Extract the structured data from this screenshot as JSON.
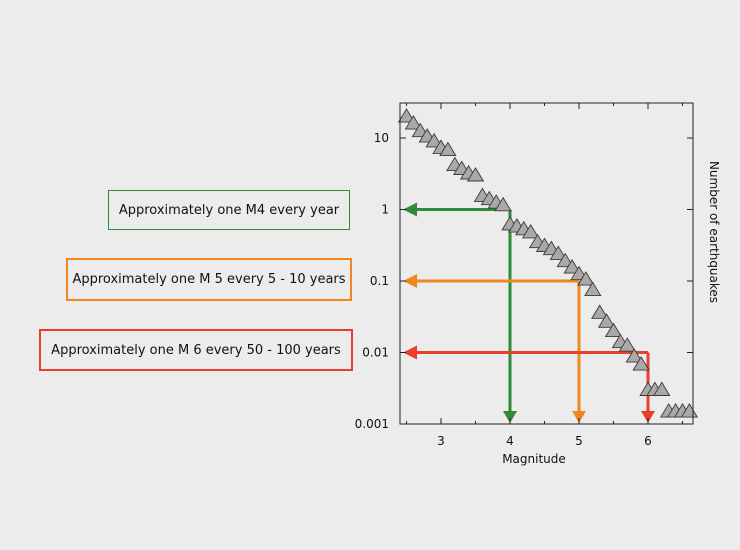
{
  "callouts": [
    {
      "id": "m4",
      "text": "Approximately one M4 every year",
      "color": "#2e8b3a"
    },
    {
      "id": "m5",
      "text": "Approximately one M 5 every 5 - 10 years",
      "color": "#f0861f"
    },
    {
      "id": "m6",
      "text": "Approximately one M 6 every 50 - 100 years",
      "color": "#e8402a"
    }
  ],
  "chart_data": {
    "type": "scatter",
    "xlabel": "Magnitude",
    "ylabel": "Number of earthquakes",
    "xlim": [
      2.45,
      6.75
    ],
    "ylim": [
      0.001,
      30
    ],
    "yscale": "log",
    "x_ticks": [
      3,
      4,
      5,
      6
    ],
    "x_tick_labels": [
      "3",
      "4",
      "5",
      "6"
    ],
    "y_ticks": [
      0.001,
      0.01,
      0.1,
      1,
      10
    ],
    "y_tick_labels": [
      "0.001",
      "0.01",
      "0.1",
      "1",
      "10"
    ],
    "marker": "triangle",
    "marker_color": "#a9a9a9",
    "series": [
      {
        "points": [
          [
            2.5,
            20
          ],
          [
            2.6,
            16
          ],
          [
            2.7,
            12.5
          ],
          [
            2.8,
            10.5
          ],
          [
            2.9,
            9
          ],
          [
            3.0,
            7.3
          ],
          [
            3.1,
            6.8
          ],
          [
            3.2,
            4.2
          ],
          [
            3.3,
            3.7
          ],
          [
            3.4,
            3.2
          ],
          [
            3.5,
            3.0
          ],
          [
            3.6,
            1.55
          ],
          [
            3.7,
            1.4
          ],
          [
            3.8,
            1.25
          ],
          [
            3.9,
            1.15
          ],
          [
            4.0,
            0.62
          ],
          [
            4.1,
            0.58
          ],
          [
            4.2,
            0.53
          ],
          [
            4.3,
            0.48
          ],
          [
            4.4,
            0.35
          ],
          [
            4.5,
            0.31
          ],
          [
            4.6,
            0.28
          ],
          [
            4.7,
            0.24
          ],
          [
            4.8,
            0.19
          ],
          [
            4.9,
            0.155
          ],
          [
            5.0,
            0.125
          ],
          [
            5.1,
            0.105
          ],
          [
            5.2,
            0.075
          ],
          [
            5.3,
            0.036
          ],
          [
            5.4,
            0.027
          ],
          [
            5.5,
            0.02
          ],
          [
            5.6,
            0.014
          ],
          [
            5.7,
            0.0125
          ],
          [
            5.8,
            0.0088
          ],
          [
            5.9,
            0.0068
          ],
          [
            6.0,
            0.003
          ],
          [
            6.1,
            0.003
          ],
          [
            6.2,
            0.003
          ],
          [
            6.3,
            0.0015
          ],
          [
            6.4,
            0.0015
          ],
          [
            6.5,
            0.0015
          ],
          [
            6.6,
            0.0015
          ]
        ]
      }
    ],
    "annotations": [
      {
        "callout": "m4",
        "magnitude": 4,
        "rate": 1,
        "color": "#2e8b3a"
      },
      {
        "callout": "m5",
        "magnitude": 5,
        "rate": 0.1,
        "color": "#f0861f"
      },
      {
        "callout": "m6",
        "magnitude": 6,
        "rate": 0.01,
        "color": "#e8402a"
      }
    ],
    "arrow_origin_magnitude": 2.45,
    "grid": false
  }
}
